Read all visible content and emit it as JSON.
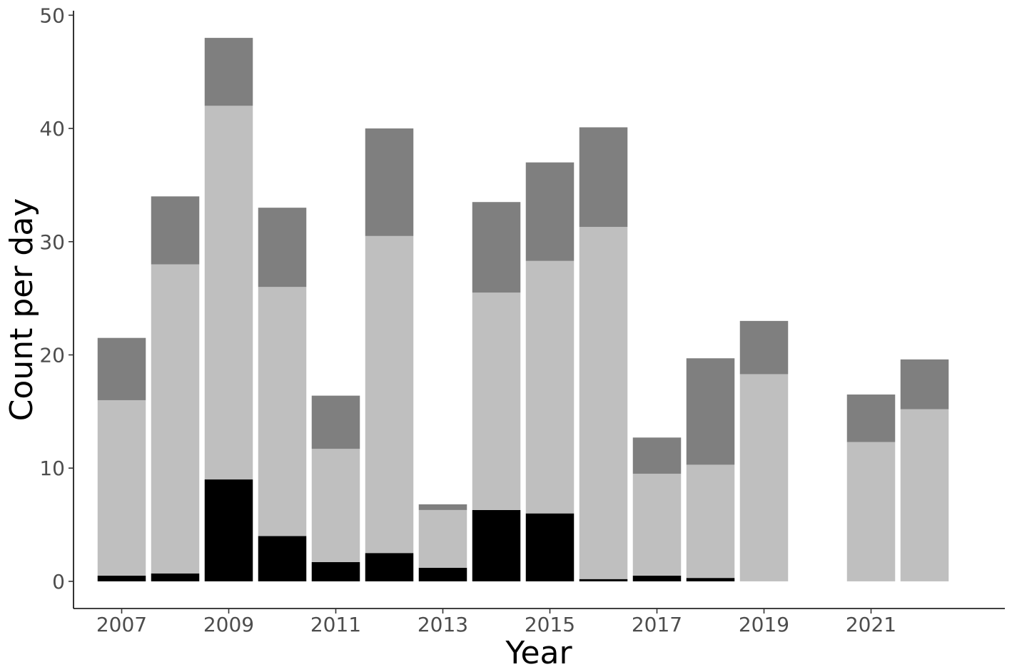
{
  "chart_data": {
    "type": "bar",
    "stacked": true,
    "title": "",
    "xlabel": "Year",
    "ylabel": "Count per day",
    "x": [
      2007,
      2008,
      2009,
      2010,
      2011,
      2012,
      2013,
      2014,
      2015,
      2016,
      2017,
      2018,
      2019,
      2021,
      2022
    ],
    "xlim": [
      2006.1,
      2023.5
    ],
    "xticks": [
      "2007",
      "2009",
      "2011",
      "2013",
      "2015",
      "2017",
      "2019",
      "2021"
    ],
    "ylim": [
      -2.4,
      50.4
    ],
    "yticks": [
      "0",
      "10",
      "20",
      "30",
      "40",
      "50"
    ],
    "grid": false,
    "legend": "none",
    "series": [
      {
        "color": "#000000",
        "values": [
          0.5,
          0.7,
          9.0,
          4.0,
          1.7,
          2.5,
          1.2,
          6.3,
          6.0,
          0.2,
          0.5,
          0.3,
          0.0,
          0.0,
          0.0
        ]
      },
      {
        "color": "#bfbfbf",
        "values": [
          15.5,
          27.3,
          33.0,
          22.0,
          10.0,
          28.0,
          5.1,
          19.2,
          22.3,
          31.1,
          9.0,
          10.0,
          18.3,
          12.3,
          15.2
        ]
      },
      {
        "color": "#7f7f7f",
        "values": [
          5.5,
          6.0,
          6.0,
          7.0,
          4.7,
          9.5,
          0.5,
          8.0,
          8.7,
          8.8,
          3.2,
          9.4,
          4.7,
          4.2,
          4.4
        ]
      }
    ]
  }
}
